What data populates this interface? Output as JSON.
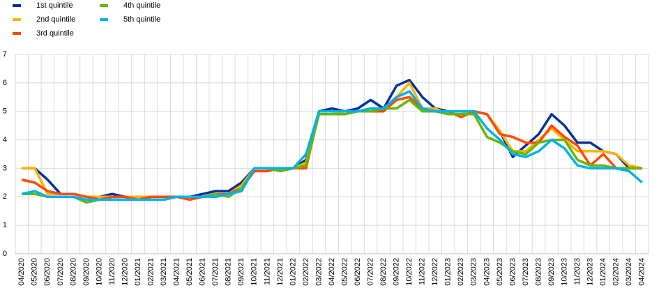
{
  "chart_data": {
    "type": "line",
    "categories": [
      "04/2020",
      "05/2020",
      "06/2020",
      "07/2020",
      "08/2020",
      "09/2020",
      "10/2020",
      "11/2020",
      "12/2020",
      "01/2021",
      "02/2021",
      "03/2021",
      "04/2021",
      "05/2021",
      "06/2021",
      "07/2021",
      "08/2021",
      "09/2021",
      "10/2021",
      "11/2021",
      "12/2021",
      "01/2022",
      "02/2022",
      "03/2022",
      "04/2022",
      "05/2022",
      "06/2022",
      "07/2022",
      "08/2022",
      "09/2022",
      "10/2022",
      "11/2022",
      "12/2022",
      "01/2023",
      "02/2023",
      "03/2023",
      "04/2023",
      "05/2023",
      "06/2023",
      "07/2023",
      "08/2023",
      "09/2023",
      "10/2023",
      "11/2023",
      "12/2023",
      "01/2024",
      "02/2024",
      "03/2024",
      "04/2024"
    ],
    "series": [
      {
        "name": "1st quintile",
        "color": "#003299",
        "values": [
          3.0,
          3.0,
          2.6,
          2.1,
          2.1,
          2.0,
          2.0,
          2.1,
          2.0,
          2.0,
          2.0,
          2.0,
          2.0,
          2.0,
          2.1,
          2.2,
          2.2,
          2.5,
          3.0,
          3.0,
          3.0,
          3.0,
          3.3,
          5.0,
          5.1,
          5.0,
          5.1,
          5.4,
          5.1,
          5.9,
          6.1,
          5.5,
          5.1,
          5.0,
          5.0,
          5.0,
          4.9,
          4.3,
          3.4,
          3.8,
          4.2,
          4.9,
          4.5,
          3.9,
          3.9,
          3.6,
          3.5,
          3.0,
          3.0
        ]
      },
      {
        "name": "2nd quintile",
        "color": "#ffb400",
        "values": [
          3.0,
          3.0,
          2.1,
          2.1,
          2.1,
          2.0,
          2.0,
          2.0,
          2.0,
          2.0,
          2.0,
          2.0,
          2.0,
          2.0,
          2.0,
          2.1,
          2.1,
          2.4,
          3.0,
          3.0,
          3.0,
          3.0,
          3.2,
          4.9,
          4.9,
          5.0,
          5.0,
          5.0,
          5.1,
          5.5,
          6.0,
          5.1,
          5.1,
          4.9,
          4.9,
          5.0,
          4.9,
          4.3,
          3.6,
          3.6,
          4.0,
          4.4,
          4.0,
          3.6,
          3.6,
          3.6,
          3.5,
          3.1,
          3.0
        ]
      },
      {
        "name": "3rd quintile",
        "color": "#ff4b00",
        "values": [
          2.6,
          2.5,
          2.2,
          2.1,
          2.1,
          2.0,
          1.9,
          2.0,
          2.0,
          1.9,
          2.0,
          2.0,
          2.0,
          1.9,
          2.0,
          2.1,
          2.1,
          2.3,
          2.9,
          2.9,
          3.0,
          3.0,
          3.0,
          5.0,
          5.0,
          5.0,
          5.0,
          5.0,
          5.0,
          5.4,
          5.5,
          5.1,
          5.0,
          5.0,
          4.8,
          5.0,
          4.9,
          4.2,
          4.1,
          3.9,
          3.9,
          4.5,
          4.1,
          3.8,
          3.1,
          3.5,
          3.0,
          3.0,
          3.0
        ]
      },
      {
        "name": "4th quintile",
        "color": "#65b800",
        "values": [
          2.1,
          2.1,
          2.0,
          2.0,
          2.0,
          1.8,
          1.9,
          1.9,
          1.9,
          1.9,
          1.9,
          1.9,
          2.0,
          2.0,
          2.0,
          2.1,
          2.0,
          2.3,
          3.0,
          3.0,
          2.9,
          3.0,
          3.1,
          4.9,
          4.9,
          4.9,
          5.0,
          5.0,
          5.1,
          5.1,
          5.4,
          5.0,
          5.0,
          4.9,
          4.9,
          4.9,
          4.1,
          3.9,
          3.6,
          3.5,
          3.9,
          4.0,
          4.0,
          3.3,
          3.1,
          3.1,
          3.0,
          3.0,
          3.0
        ]
      },
      {
        "name": "5th quintile",
        "color": "#00b1ea",
        "values": [
          2.1,
          2.2,
          2.0,
          2.0,
          2.0,
          1.9,
          1.9,
          1.9,
          1.9,
          1.9,
          1.9,
          1.9,
          2.0,
          2.0,
          2.0,
          2.0,
          2.1,
          2.2,
          3.0,
          3.0,
          3.0,
          3.0,
          3.5,
          5.0,
          5.0,
          5.0,
          5.0,
          5.1,
          5.1,
          5.5,
          5.7,
          5.1,
          5.0,
          5.0,
          5.0,
          5.0,
          4.4,
          4.0,
          3.5,
          3.4,
          3.6,
          4.0,
          3.7,
          3.1,
          3.0,
          3.0,
          3.0,
          2.9,
          2.5
        ]
      }
    ],
    "ylim": [
      0,
      7
    ],
    "yticks": [
      0,
      1,
      2,
      3,
      4,
      5,
      6,
      7
    ],
    "grid": true,
    "legend": "top-left"
  }
}
